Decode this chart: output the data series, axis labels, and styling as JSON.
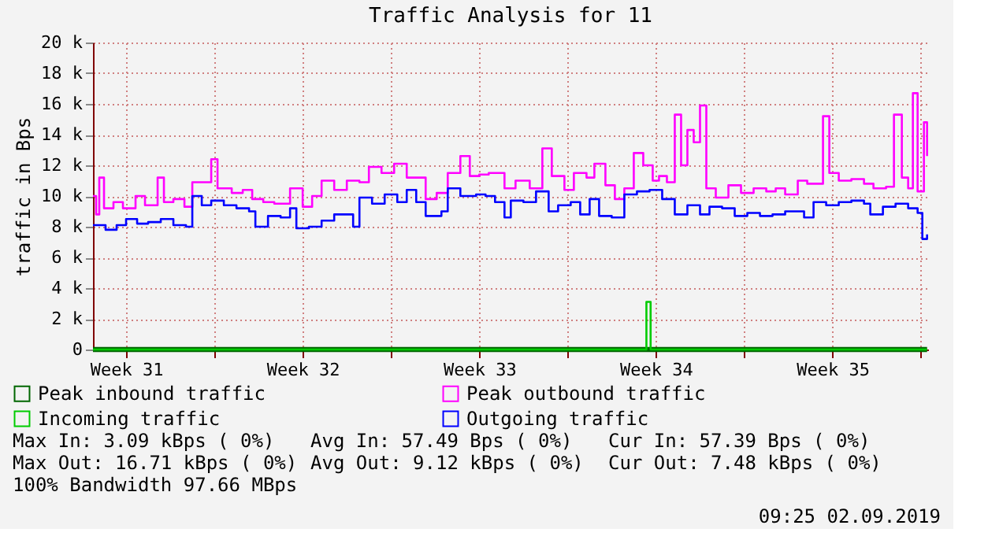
{
  "chart_data": {
    "type": "step",
    "title": "Traffic Analysis for 11",
    "ylabel": "traffic in Bps",
    "xlim": [
      "2019-07-31T04:30",
      "2019-09-02T07:00"
    ],
    "xticks": [
      {
        "value": "2019-08-01T12:00",
        "label": "Week 31"
      },
      {
        "value": "2019-08-05",
        "label": null
      },
      {
        "value": "2019-08-08T12:00",
        "label": "Week 32"
      },
      {
        "value": "2019-08-12",
        "label": null
      },
      {
        "value": "2019-08-15T12:00",
        "label": "Week 33"
      },
      {
        "value": "2019-08-19",
        "label": null
      },
      {
        "value": "2019-08-22T12:00",
        "label": "Week 34"
      },
      {
        "value": "2019-08-26",
        "label": null
      },
      {
        "value": "2019-08-29T12:00",
        "label": "Week 35"
      },
      {
        "value": "2019-09-02",
        "label": null
      }
    ],
    "ylim": [
      0,
      20
    ],
    "yticks": [
      0,
      {
        "value": 2,
        "label": "2 k"
      },
      {
        "value": 4,
        "label": "4 k"
      },
      {
        "value": 6,
        "label": "6 k"
      },
      {
        "value": 8,
        "label": "8 k"
      },
      {
        "value": 10,
        "label": "10 k"
      },
      {
        "value": 12,
        "label": "12 k"
      },
      {
        "value": 14,
        "label": "14 k"
      },
      {
        "value": 16,
        "label": "16 k"
      },
      {
        "value": 18,
        "label": "18 k"
      },
      {
        "value": 20,
        "label": "20 k"
      }
    ],
    "grid": true,
    "legend": "bottom",
    "series": [
      {
        "name": "Peak inbound traffic",
        "color": "#006600",
        "x": [
          "2019-07-31T04:30",
          "2019-09-02T06:00"
        ],
        "values": [
          0,
          0
        ]
      },
      {
        "name": "Incoming traffic",
        "color": "#00cc00",
        "x": [
          "2019-07-31T04:30",
          "2019-08-22T02:00",
          "2019-08-22T03:00",
          "2019-08-22T06:00",
          "2019-08-22T07:00",
          "2019-09-02T06:00"
        ],
        "values": [
          0,
          0,
          3.1,
          3.1,
          0,
          0
        ]
      },
      {
        "name": "Peak outbound traffic",
        "color": "#ff00ff",
        "x": [
          "2019-07-31T04:30",
          "2019-07-31T07:30",
          "2019-07-31T10:30",
          "2019-07-31T15:00",
          "2019-08-01T00:00",
          "2019-08-01T09:00",
          "2019-08-01T21:00",
          "2019-08-02T06:00",
          "2019-08-02T18:00",
          "2019-08-03T00:00",
          "2019-08-03T09:00",
          "2019-08-03T19:30",
          "2019-08-04T03:00",
          "2019-08-04T09:00",
          "2019-08-04T21:00",
          "2019-08-05T03:00",
          "2019-08-05T16:30",
          "2019-08-06T03:00",
          "2019-08-06T12:00",
          "2019-08-06T22:30",
          "2019-08-07T09:00",
          "2019-08-08T00:00",
          "2019-08-08T12:00",
          "2019-08-08T21:00",
          "2019-08-09T06:00",
          "2019-08-09T18:00",
          "2019-08-10T06:00",
          "2019-08-10T18:00",
          "2019-08-11T03:00",
          "2019-08-11T15:00",
          "2019-08-12T03:00",
          "2019-08-12T15:00",
          "2019-08-13T03:00",
          "2019-08-13T09:00",
          "2019-08-13T19:30",
          "2019-08-14T06:00",
          "2019-08-14T18:00",
          "2019-08-15T03:00",
          "2019-08-15T12:00",
          "2019-08-15T21:00",
          "2019-08-16T12:00",
          "2019-08-16T22:30",
          "2019-08-17T12:00",
          "2019-08-18T00:00",
          "2019-08-18T09:00",
          "2019-08-18T21:00",
          "2019-08-19T06:00",
          "2019-08-19T18:00",
          "2019-08-20T01:30",
          "2019-08-20T12:00",
          "2019-08-20T21:00",
          "2019-08-21T06:00",
          "2019-08-21T15:00",
          "2019-08-22T00:00",
          "2019-08-22T09:00",
          "2019-08-22T15:00",
          "2019-08-22T22:30",
          "2019-08-23T06:00",
          "2019-08-23T12:00",
          "2019-08-23T18:00",
          "2019-08-24T00:00",
          "2019-08-24T06:00",
          "2019-08-24T12:00",
          "2019-08-24T21:00",
          "2019-08-25T09:00",
          "2019-08-25T21:00",
          "2019-08-26T09:00",
          "2019-08-26T21:00",
          "2019-08-27T06:00",
          "2019-08-27T15:00",
          "2019-08-28T03:00",
          "2019-08-28T12:00",
          "2019-08-29T03:00",
          "2019-08-29T09:00",
          "2019-08-29T18:00",
          "2019-08-30T06:00",
          "2019-08-30T18:00",
          "2019-08-31T03:00",
          "2019-08-31T15:00",
          "2019-08-31T22:30",
          "2019-09-01T06:00",
          "2019-09-01T12:00",
          "2019-09-01T16:30",
          "2019-09-01T21:00",
          "2019-09-02T03:00",
          "2019-09-02T06:00"
        ],
        "values": [
          10.0,
          8.8,
          11.2,
          9.2,
          9.6,
          9.2,
          10.0,
          9.4,
          11.2,
          9.6,
          9.8,
          9.3,
          10.9,
          10.9,
          12.4,
          10.5,
          10.2,
          10.4,
          9.8,
          9.6,
          9.5,
          10.5,
          9.3,
          10.0,
          11.0,
          10.4,
          11.0,
          10.9,
          11.9,
          11.5,
          12.1,
          11.2,
          11.2,
          9.8,
          10.2,
          11.5,
          12.6,
          11.3,
          11.4,
          11.5,
          10.5,
          11.0,
          10.5,
          13.1,
          11.3,
          10.4,
          11.5,
          11.2,
          12.1,
          10.7,
          9.8,
          10.5,
          12.8,
          12.0,
          11.0,
          11.3,
          10.9,
          15.3,
          12.0,
          14.3,
          13.5,
          15.9,
          10.5,
          9.9,
          10.7,
          10.2,
          10.5,
          10.3,
          10.5,
          10.1,
          11.0,
          10.8,
          15.2,
          11.5,
          11.0,
          11.1,
          10.8,
          10.5,
          10.6,
          15.3,
          11.2,
          10.5,
          16.7,
          10.3,
          14.8,
          12.6
        ]
      },
      {
        "name": "Outgoing traffic",
        "color": "#0000ff",
        "x": [
          "2019-07-31T04:30",
          "2019-07-31T16:30",
          "2019-08-01T03:00",
          "2019-08-01T12:00",
          "2019-08-01T22:30",
          "2019-08-02T09:00",
          "2019-08-02T21:00",
          "2019-08-03T09:00",
          "2019-08-03T21:00",
          "2019-08-04T03:00",
          "2019-08-04T12:00",
          "2019-08-04T21:00",
          "2019-08-05T09:00",
          "2019-08-05T21:00",
          "2019-08-06T09:00",
          "2019-08-06T15:00",
          "2019-08-07T03:00",
          "2019-08-07T15:00",
          "2019-08-08T00:00",
          "2019-08-08T06:00",
          "2019-08-08T18:00",
          "2019-08-09T06:00",
          "2019-08-09T18:00",
          "2019-08-10T03:00",
          "2019-08-10T12:00",
          "2019-08-10T18:00",
          "2019-08-11T06:00",
          "2019-08-11T18:00",
          "2019-08-12T06:00",
          "2019-08-12T15:00",
          "2019-08-13T00:00",
          "2019-08-13T09:00",
          "2019-08-14T00:00",
          "2019-08-14T06:00",
          "2019-08-14T18:00",
          "2019-08-15T09:00",
          "2019-08-15T18:00",
          "2019-08-16T03:00",
          "2019-08-16T12:00",
          "2019-08-16T18:00",
          "2019-08-17T06:00",
          "2019-08-17T18:00",
          "2019-08-18T06:00",
          "2019-08-18T15:00",
          "2019-08-19T03:00",
          "2019-08-19T12:00",
          "2019-08-19T21:00",
          "2019-08-20T06:00",
          "2019-08-20T18:00",
          "2019-08-21T06:00",
          "2019-08-21T18:00",
          "2019-08-22T06:00",
          "2019-08-22T18:00",
          "2019-08-23T06:00",
          "2019-08-23T18:00",
          "2019-08-24T06:00",
          "2019-08-24T15:00",
          "2019-08-25T03:00",
          "2019-08-25T15:00",
          "2019-08-26T03:00",
          "2019-08-26T15:00",
          "2019-08-27T03:00",
          "2019-08-27T15:00",
          "2019-08-28T03:00",
          "2019-08-28T09:00",
          "2019-08-28T18:00",
          "2019-08-29T06:00",
          "2019-08-29T18:00",
          "2019-08-30T06:00",
          "2019-08-30T18:00",
          "2019-08-31T00:00",
          "2019-08-31T12:00",
          "2019-09-01T00:00",
          "2019-09-01T12:00",
          "2019-09-01T21:00",
          "2019-09-02T01:30",
          "2019-09-02T06:00"
        ],
        "values": [
          8.1,
          7.8,
          8.1,
          8.5,
          8.2,
          8.3,
          8.5,
          8.1,
          8.0,
          10.0,
          9.4,
          9.7,
          9.4,
          9.2,
          9.0,
          8.0,
          8.7,
          8.6,
          9.2,
          7.9,
          8.0,
          8.4,
          8.8,
          8.8,
          8.0,
          9.9,
          9.5,
          10.1,
          9.6,
          10.4,
          9.6,
          8.7,
          9.0,
          10.5,
          10.0,
          10.1,
          10.0,
          9.6,
          8.6,
          9.7,
          9.6,
          10.3,
          9.0,
          9.4,
          9.6,
          8.8,
          9.8,
          8.7,
          8.6,
          10.1,
          10.3,
          10.4,
          9.8,
          8.8,
          9.4,
          8.8,
          9.3,
          9.2,
          8.7,
          8.9,
          8.7,
          8.8,
          9.0,
          9.0,
          8.6,
          9.6,
          9.4,
          9.6,
          9.7,
          9.5,
          8.8,
          9.3,
          9.5,
          9.2,
          8.9,
          7.2,
          7.5
        ]
      }
    ],
    "annotations": [
      "Max In:   3.09 kBps ( 0%)",
      "Avg In:  57.49  Bps ( 0%)",
      "Cur In:  57.39  Bps ( 0%)",
      "Max Out: 16.71 kBps ( 0%)",
      "Avg Out:  9.12 kBps ( 0%)",
      "Cur Out:  7.48 kBps ( 0%)",
      "100% Bandwidth 97.66 MBps",
      "09:25 02.09.2019"
    ]
  }
}
